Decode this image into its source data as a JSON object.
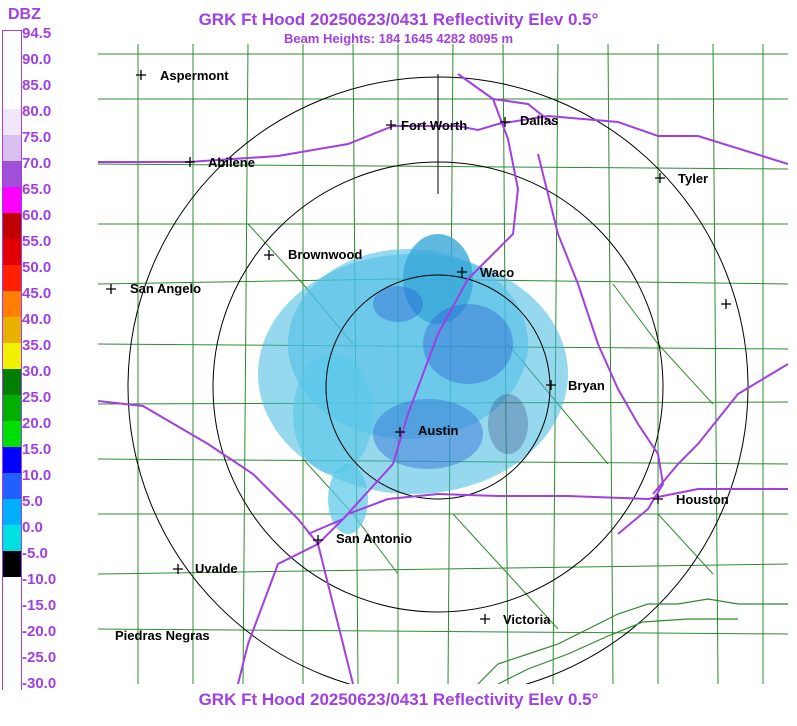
{
  "header": {
    "title": "GRK Ft Hood 20250623/0431 Reflectivity Elev 0.5°",
    "beam_heights": "Beam Heights: 184 1645 4282 8095 m"
  },
  "footer": {
    "title": "GRK Ft Hood 20250623/0431 Reflectivity Elev 0.5°"
  },
  "legend": {
    "unit": "DBZ",
    "entries": [
      {
        "label": "94.5",
        "color": "#ffffff"
      },
      {
        "label": "90.0",
        "color": "#ffffff"
      },
      {
        "label": "85.0",
        "color": "#ffffff"
      },
      {
        "label": "80.0",
        "color": "#f0e8f8"
      },
      {
        "label": "75.0",
        "color": "#d8c0f0"
      },
      {
        "label": "70.0",
        "color": "#a050d8"
      },
      {
        "label": "65.0",
        "color": "#ff00ff"
      },
      {
        "label": "60.0",
        "color": "#c00000"
      },
      {
        "label": "55.0",
        "color": "#e00000"
      },
      {
        "label": "50.0",
        "color": "#ff2000"
      },
      {
        "label": "45.0",
        "color": "#ff8000"
      },
      {
        "label": "40.0",
        "color": "#e8b000"
      },
      {
        "label": "35.0",
        "color": "#f0f000"
      },
      {
        "label": "30.0",
        "color": "#008000"
      },
      {
        "label": "25.0",
        "color": "#00b000"
      },
      {
        "label": "20.0",
        "color": "#00e000"
      },
      {
        "label": "15.0",
        "color": "#0000ff"
      },
      {
        "label": "10.0",
        "color": "#2060ff"
      },
      {
        "label": "5.0",
        "color": "#00b0ff"
      },
      {
        "label": "0.0",
        "color": "#00e0e0"
      },
      {
        "label": "-5.0",
        "color": "#000000"
      },
      {
        "label": "-10.0",
        "color": "#ffffff"
      },
      {
        "label": "-15.0",
        "color": "#ffffff"
      },
      {
        "label": "-20.0",
        "color": "#ffffff"
      },
      {
        "label": "-25.0",
        "color": "#ffffff"
      },
      {
        "label": "-30.0",
        "color": "#ffffff"
      }
    ]
  },
  "cities": [
    "Aspermont",
    "Fort Worth",
    "Dallas",
    "Abilene",
    "Tyler",
    "Brownwood",
    "Waco",
    "San Angelo",
    "Bryan",
    "Austin",
    "Houston",
    "San Antonio",
    "Uvalde",
    "Victoria",
    "Piedras Negras"
  ],
  "colors": {
    "title": "#a040e0",
    "county_lines": "#2e8b2e",
    "highways": "#a040e0",
    "range_rings": "#000000",
    "echo_light": "#40b8e0",
    "echo_dark": "#2050d0"
  }
}
